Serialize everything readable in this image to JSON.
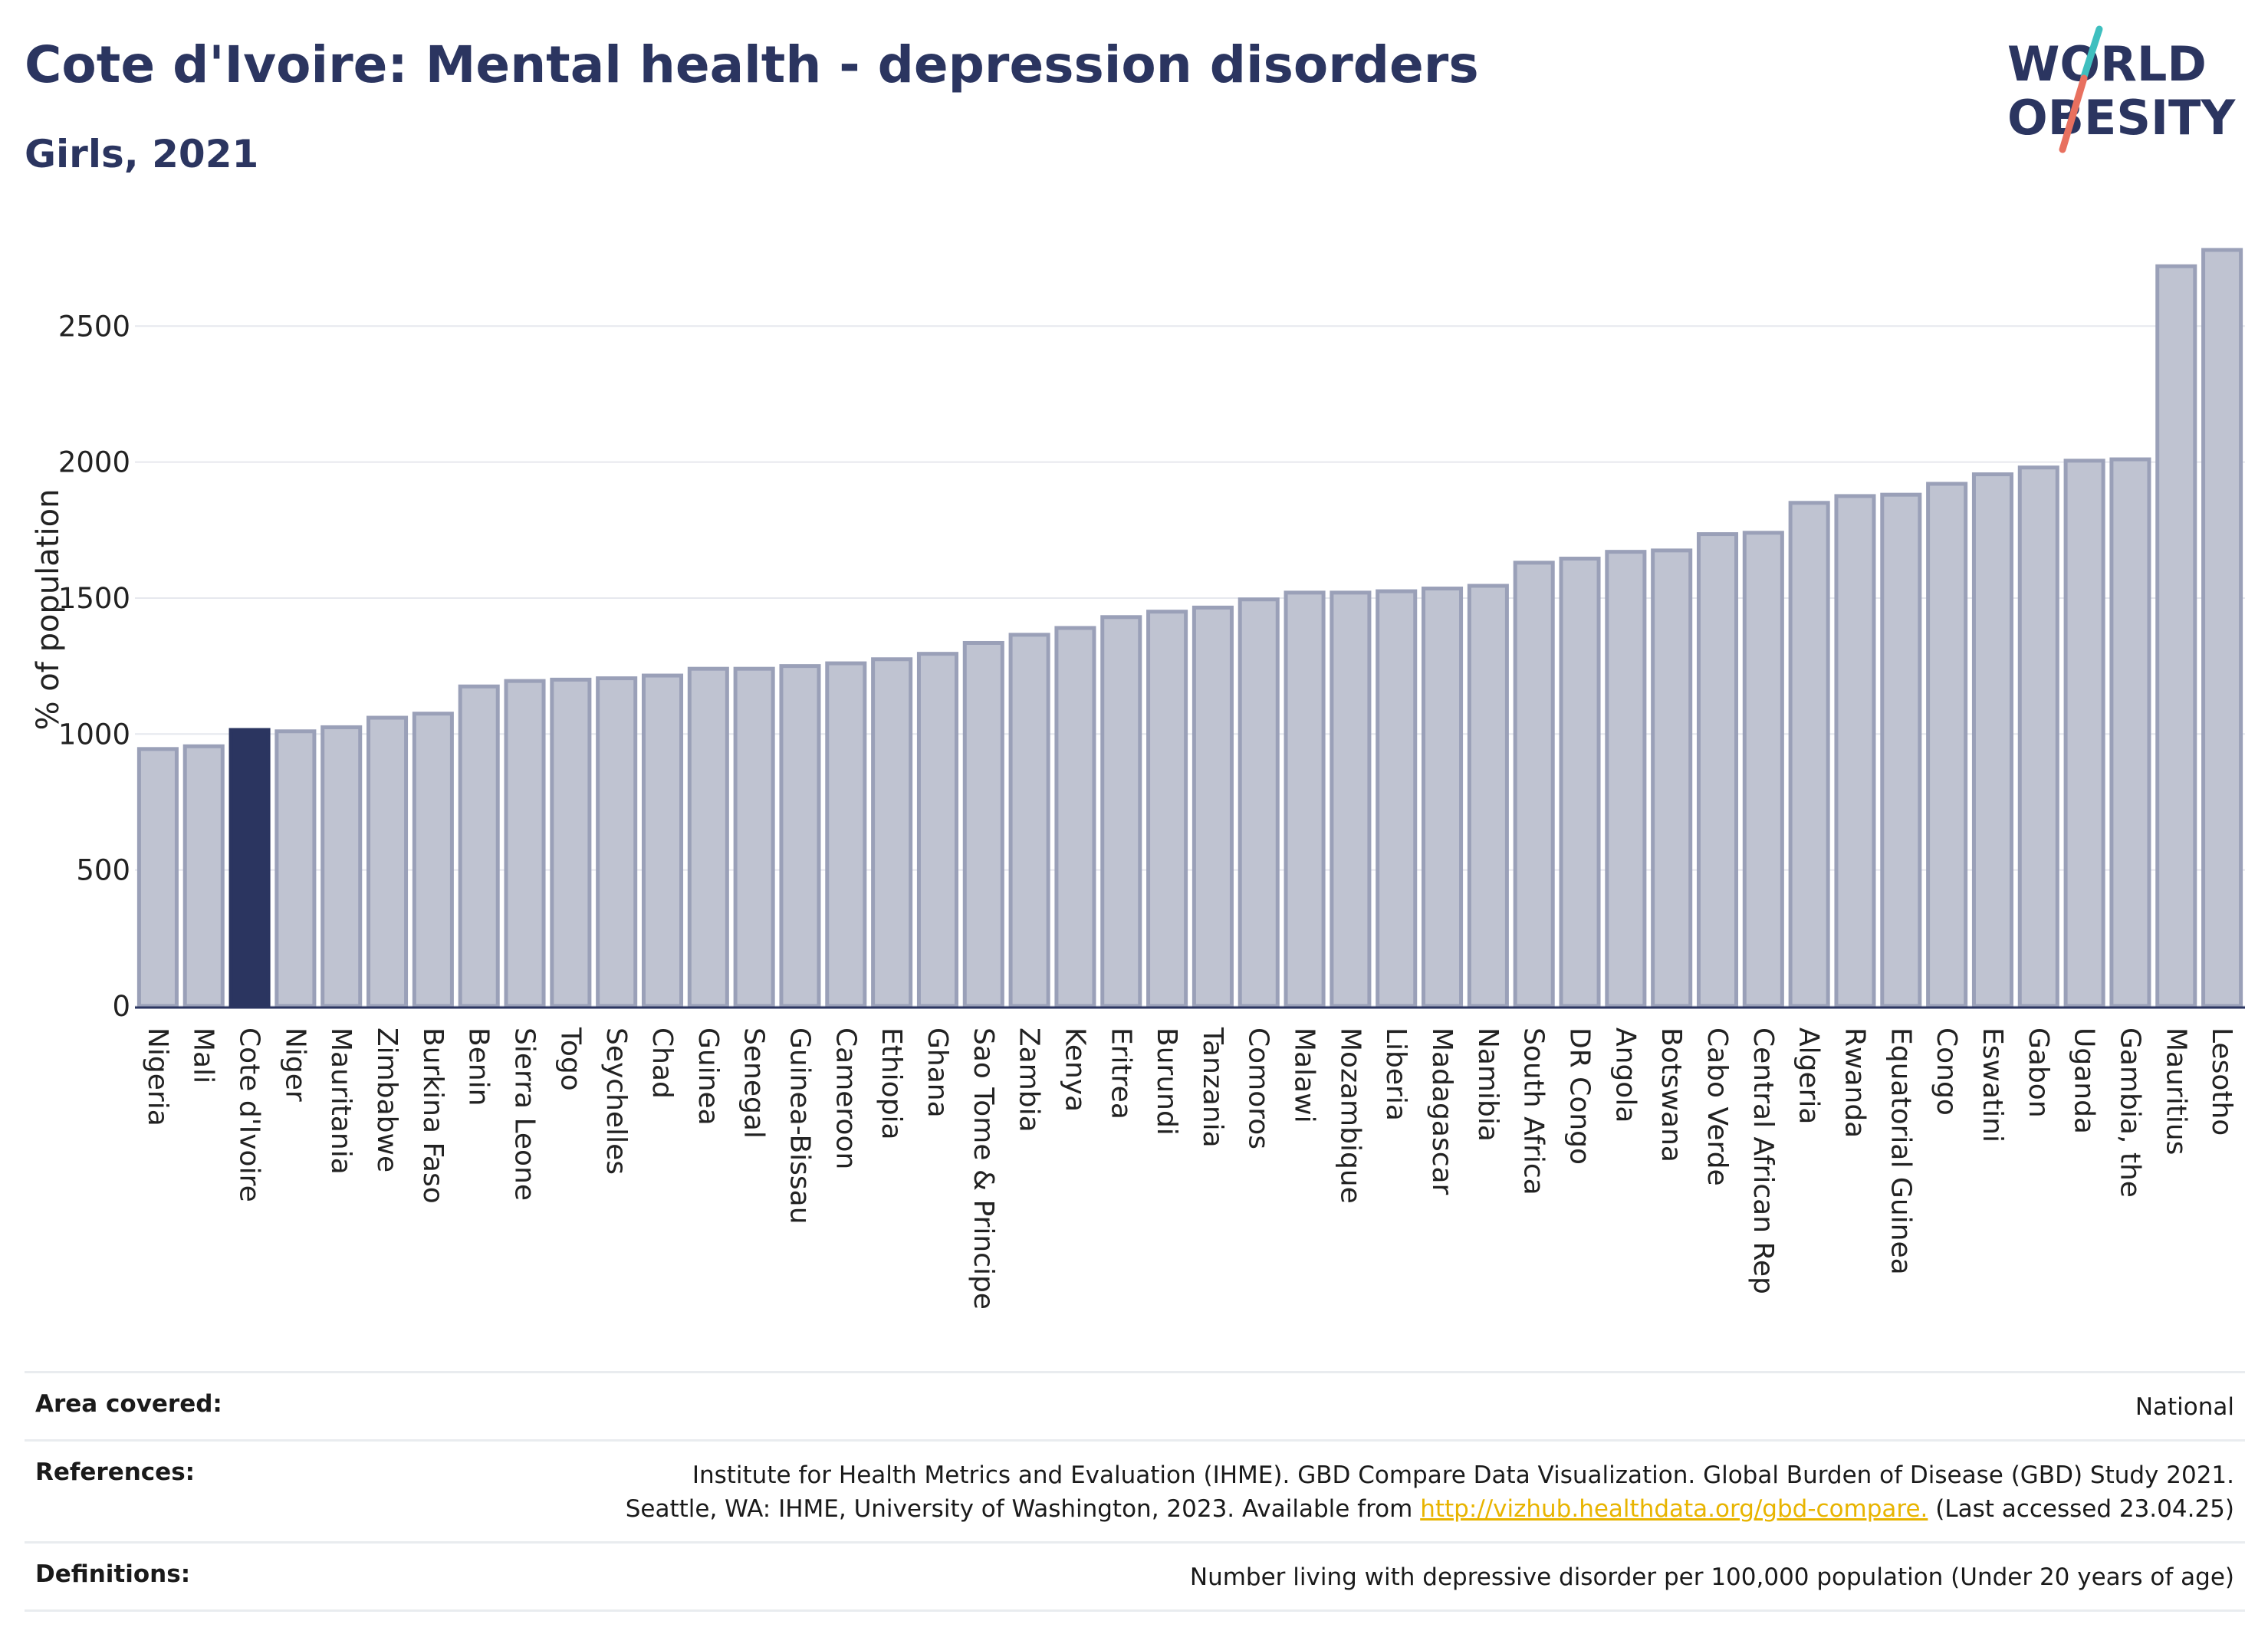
{
  "title": "Cote d'Ivoire: Mental health - depression disorders",
  "subtitle": "Girls, 2021",
  "logo": {
    "line1": "WORLD",
    "line2": "OBESITY",
    "colors": [
      "#2b3560",
      "#e8705f",
      "#3fbfbf"
    ]
  },
  "chart_data": {
    "type": "bar",
    "ylabel": "% of population",
    "xlabel": "",
    "ylim": [
      0,
      2800
    ],
    "yticks": [
      0,
      500,
      1000,
      1500,
      2000,
      2500
    ],
    "grid": true,
    "highlight": "Cote d'Ivoire",
    "colors": {
      "bar": "#bfc3d1",
      "bar_edge": "#9aa0b8",
      "highlight": "#2b3560"
    },
    "categories": [
      "Nigeria",
      "Mali",
      "Cote d'Ivoire",
      "Niger",
      "Mauritania",
      "Zimbabwe",
      "Burkina Faso",
      "Benin",
      "Sierra Leone",
      "Togo",
      "Seychelles",
      "Chad",
      "Guinea",
      "Senegal",
      "Guinea-Bissau",
      "Cameroon",
      "Ethiopia",
      "Ghana",
      "Sao Tome & Principe",
      "Zambia",
      "Kenya",
      "Eritrea",
      "Burundi",
      "Tanzania",
      "Comoros",
      "Malawi",
      "Mozambique",
      "Liberia",
      "Madagascar",
      "Namibia",
      "South Africa",
      "DR Congo",
      "Angola",
      "Botswana",
      "Cabo Verde",
      "Central African Rep",
      "Algeria",
      "Rwanda",
      "Equatorial Guinea",
      "Congo",
      "Eswatini",
      "Gabon",
      "Uganda",
      "Gambia, the",
      "Mauritius",
      "Lesotho"
    ],
    "values": [
      945,
      955,
      1015,
      1010,
      1025,
      1060,
      1075,
      1175,
      1195,
      1200,
      1205,
      1215,
      1240,
      1240,
      1250,
      1260,
      1275,
      1295,
      1335,
      1365,
      1390,
      1430,
      1450,
      1465,
      1495,
      1520,
      1520,
      1525,
      1535,
      1545,
      1630,
      1645,
      1670,
      1675,
      1735,
      1740,
      1850,
      1875,
      1880,
      1920,
      1955,
      1980,
      2005,
      2010,
      2720,
      2780
    ]
  },
  "footer": {
    "area": {
      "label": "Area covered:",
      "value": "National"
    },
    "references": {
      "label": "References:",
      "line1": "Institute for Health Metrics and Evaluation (IHME). GBD Compare Data Visualization. Global Burden of Disease (GBD) Study 2021.",
      "line2_pre": "Seattle, WA: IHME, University of Washington, 2023. Available from ",
      "link": "http://vizhub.healthdata.org/gbd-compare.",
      "line2_post": " (Last accessed 23.04.25)"
    },
    "definitions": {
      "label": "Definitions:",
      "value": "Number living with depressive disorder per 100,000 population (Under 20 years of age)"
    }
  }
}
